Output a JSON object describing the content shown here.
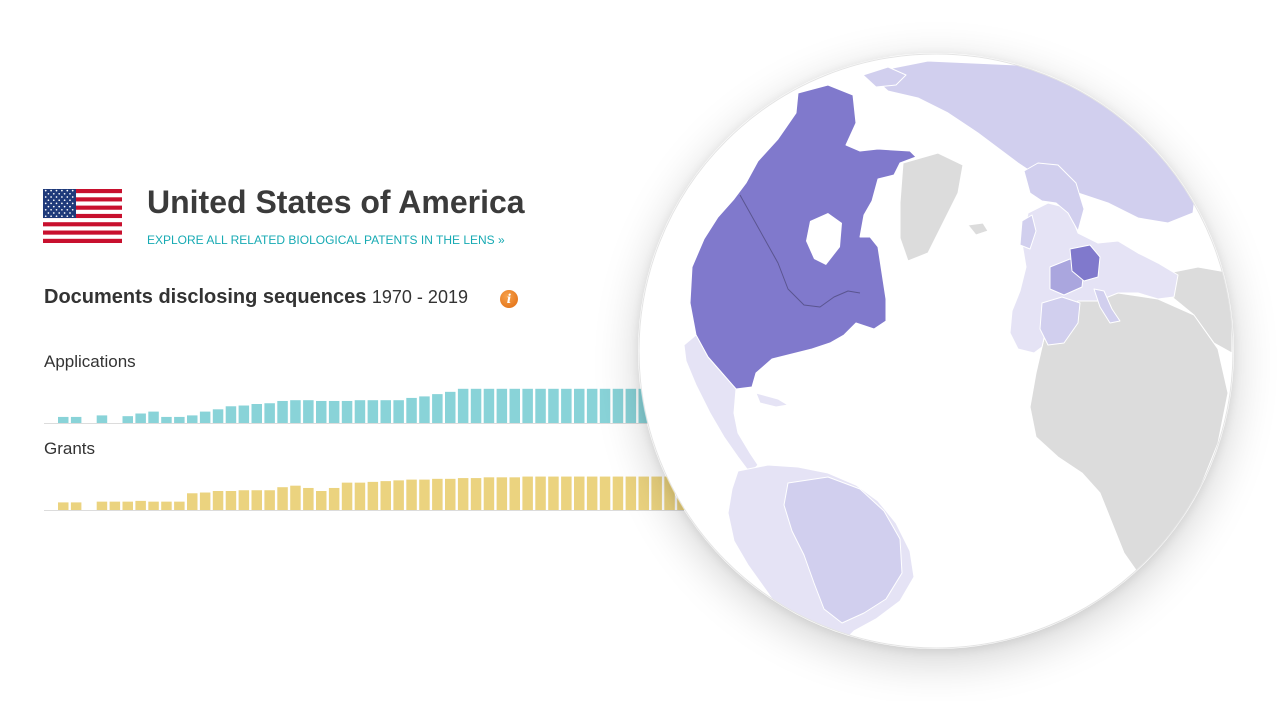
{
  "country": {
    "name": "United States of America",
    "explore_link": "EXPLORE ALL RELATED BIOLOGICAL PATENTS IN THE LENS »"
  },
  "documents": {
    "heading": "Documents disclosing sequences",
    "range": "1970 - 2019",
    "info_icon": "info-icon"
  },
  "colors": {
    "applications": "#89d3d8",
    "grants": "#ebd37f",
    "link": "#17aab3",
    "map_selected": "#8079cc",
    "map_medium": "#aaa6de",
    "map_light": "#d1cfee",
    "map_lightest": "#e5e3f5",
    "map_none": "#dcdcdc"
  },
  "chart_data": [
    {
      "type": "bar",
      "title": "Applications",
      "values": [
        0.16,
        0.16,
        0,
        0.2,
        0,
        0.18,
        0.25,
        0.3,
        0.16,
        0.16,
        0.2,
        0.3,
        0.36,
        0.44,
        0.46,
        0.5,
        0.52,
        0.58,
        0.6,
        0.6,
        0.58,
        0.58,
        0.58,
        0.6,
        0.6,
        0.6,
        0.6,
        0.66,
        0.7,
        0.76,
        0.82,
        0.9,
        0.9,
        0.9,
        0.9,
        0.9,
        0.9,
        0.9,
        0.9,
        0.9,
        0.9,
        0.9,
        0.9,
        0.9,
        0.9,
        0.9,
        0.9,
        0.9,
        0.9,
        0.9
      ],
      "ylim": [
        0,
        1
      ]
    },
    {
      "type": "bar",
      "title": "Grants",
      "values": [
        0.2,
        0.2,
        0,
        0.22,
        0.22,
        0.22,
        0.24,
        0.22,
        0.22,
        0.22,
        0.44,
        0.46,
        0.5,
        0.5,
        0.52,
        0.52,
        0.52,
        0.6,
        0.64,
        0.58,
        0.5,
        0.58,
        0.72,
        0.72,
        0.74,
        0.76,
        0.78,
        0.8,
        0.8,
        0.82,
        0.82,
        0.84,
        0.84,
        0.86,
        0.86,
        0.86,
        0.88,
        0.88,
        0.88,
        0.88,
        0.88,
        0.88,
        0.88,
        0.88,
        0.88,
        0.88,
        0.88,
        0.88,
        0.88,
        0.88
      ],
      "ylim": [
        0,
        1
      ]
    }
  ]
}
